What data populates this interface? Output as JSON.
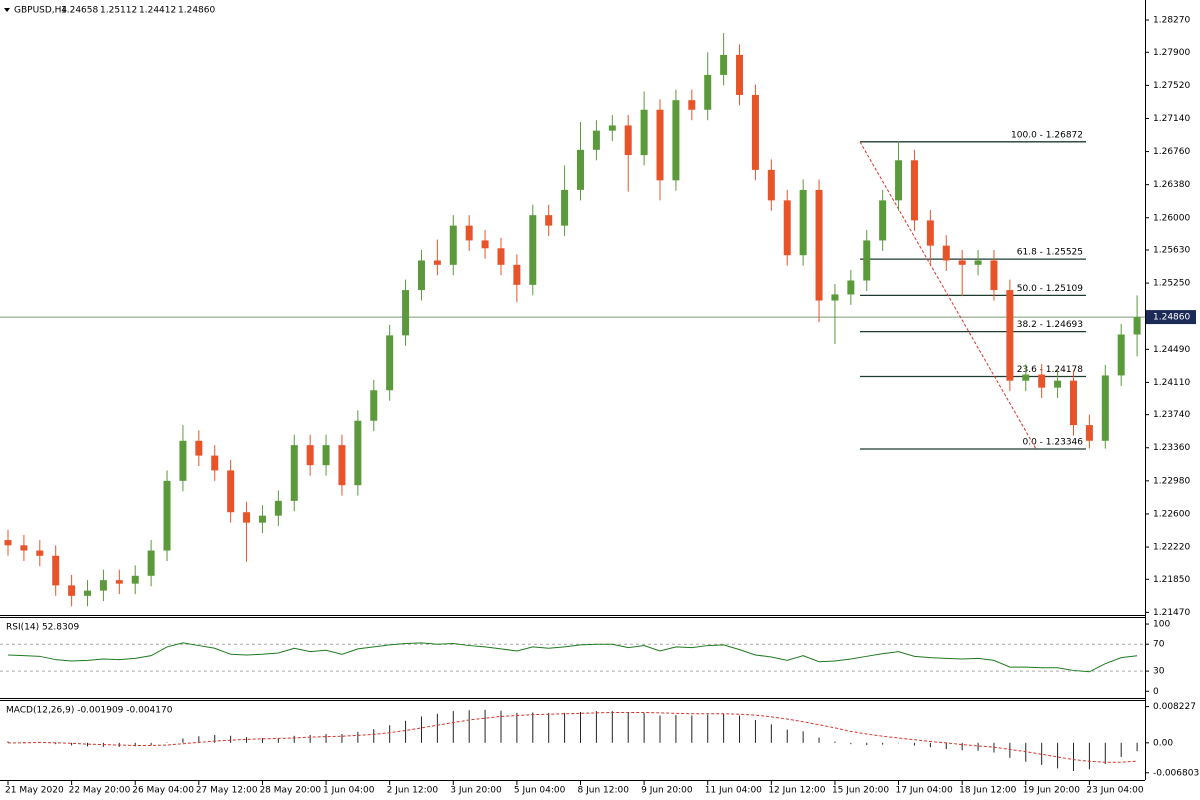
{
  "chart_data": [
    {
      "type": "candlestick",
      "title": "GBPUSD,H4",
      "header_values": [
        "1.24658",
        "1.25112",
        "1.24412",
        "1.24860"
      ],
      "categories": [
        "21 May 2020",
        null,
        null,
        null,
        "22 May 20:00",
        null,
        null,
        null,
        "26 May 04:00",
        null,
        null,
        null,
        "27 May 12:00",
        null,
        null,
        null,
        "28 May 20:00",
        null,
        null,
        null,
        "1 Jun 04:00",
        null,
        null,
        null,
        "2 Jun 12:00",
        null,
        null,
        null,
        "3 Jun 20:00",
        null,
        null,
        null,
        "5 Jun 04:00",
        null,
        null,
        null,
        "8 Jun 12:00",
        null,
        null,
        null,
        "9 Jun 20:00",
        null,
        null,
        null,
        "11 Jun 04:00",
        null,
        null,
        null,
        "12 Jun 12:00",
        null,
        null,
        null,
        "15 Jun 20:00",
        null,
        null,
        null,
        "17 Jun 04:00",
        null,
        null,
        null,
        "18 Jun 12:00",
        null,
        null,
        null,
        "19 Jun 20:00",
        null,
        null,
        null,
        "23 Jun 04:00",
        null,
        null,
        null
      ],
      "open": [
        1.223,
        1.2224,
        1.2218,
        1.2212,
        1.2178,
        1.2166,
        1.2172,
        1.2184,
        1.218,
        1.2189,
        1.2218,
        1.2298,
        1.2344,
        1.2327,
        1.231,
        1.2262,
        1.225,
        1.2258,
        1.2275,
        1.2339,
        1.2316,
        1.2339,
        1.2293,
        1.2367,
        1.2402,
        1.2465,
        1.2517,
        1.2551,
        1.2546,
        1.2591,
        1.2574,
        1.2565,
        1.2546,
        1.2523,
        1.2603,
        1.2591,
        1.2632,
        1.2678,
        1.27,
        1.2706,
        1.2672,
        1.2724,
        1.2643,
        1.2735,
        1.2724,
        1.2764,
        1.2787,
        1.2741,
        1.2655,
        1.262,
        1.2557,
        1.2632,
        1.2505,
        1.2512,
        1.2528,
        1.2574,
        1.262,
        1.2666,
        1.2597,
        1.2568,
        1.2551,
        1.2546,
        1.2551,
        1.2517,
        1.2413,
        1.242,
        1.2405,
        1.2413,
        1.2362,
        1.2344,
        1.2419,
        1.2466
      ],
      "high": [
        1.2242,
        1.2236,
        1.223,
        1.2224,
        1.219,
        1.2184,
        1.2196,
        1.2196,
        1.2201,
        1.223,
        1.231,
        1.2362,
        1.2356,
        1.2339,
        1.2322,
        1.2274,
        1.227,
        1.2287,
        1.2351,
        1.2351,
        1.2351,
        1.2351,
        1.2379,
        1.2414,
        1.2477,
        1.2529,
        1.2563,
        1.2575,
        1.2603,
        1.2603,
        1.2586,
        1.2577,
        1.2558,
        1.2615,
        1.2615,
        1.266,
        1.271,
        1.2712,
        1.2718,
        1.2718,
        1.2745,
        1.2736,
        1.2747,
        1.2747,
        1.279,
        1.2812,
        1.2799,
        1.2753,
        1.2667,
        1.2632,
        1.2644,
        1.2644,
        1.2524,
        1.254,
        1.2586,
        1.2632,
        1.2688,
        1.2678,
        1.2609,
        1.258,
        1.2563,
        1.2563,
        1.2563,
        1.2529,
        1.2432,
        1.2432,
        1.2425,
        1.2425,
        1.2374,
        1.2431,
        1.2478,
        1.2511
      ],
      "low": [
        1.2212,
        1.2206,
        1.22,
        1.2166,
        1.2154,
        1.2154,
        1.216,
        1.2168,
        1.2168,
        1.2177,
        1.2206,
        1.2286,
        1.2315,
        1.2298,
        1.225,
        1.2205,
        1.2238,
        1.2246,
        1.2263,
        1.2304,
        1.2304,
        1.2281,
        1.2281,
        1.2355,
        1.239,
        1.2453,
        1.2505,
        1.2534,
        1.2534,
        1.2562,
        1.2553,
        1.2534,
        1.2503,
        1.2511,
        1.2579,
        1.2579,
        1.262,
        1.2666,
        1.2688,
        1.263,
        1.266,
        1.262,
        1.2631,
        1.2712,
        1.2712,
        1.2752,
        1.2729,
        1.2643,
        1.2608,
        1.2545,
        1.2545,
        1.248,
        1.2455,
        1.25,
        1.2516,
        1.2562,
        1.2608,
        1.2585,
        1.2545,
        1.2539,
        1.251,
        1.2534,
        1.2505,
        1.2401,
        1.2401,
        1.2393,
        1.2393,
        1.235,
        1.2335,
        1.2335,
        1.2407,
        1.2441
      ],
      "close": [
        1.2224,
        1.2218,
        1.2212,
        1.2178,
        1.2166,
        1.2172,
        1.2184,
        1.218,
        1.2189,
        1.2218,
        1.2298,
        1.2344,
        1.2327,
        1.231,
        1.2262,
        1.225,
        1.2258,
        1.2275,
        1.2339,
        1.2316,
        1.2339,
        1.2293,
        1.2367,
        1.2402,
        1.2465,
        1.2517,
        1.2551,
        1.2546,
        1.2591,
        1.2574,
        1.2565,
        1.2546,
        1.2523,
        1.2603,
        1.2591,
        1.2632,
        1.2678,
        1.27,
        1.2706,
        1.2672,
        1.2724,
        1.2643,
        1.2735,
        1.2724,
        1.2764,
        1.2787,
        1.2741,
        1.2655,
        1.262,
        1.2557,
        1.2632,
        1.2505,
        1.2512,
        1.2528,
        1.2574,
        1.262,
        1.2666,
        1.2597,
        1.2568,
        1.2551,
        1.2546,
        1.2551,
        1.2517,
        1.2413,
        1.242,
        1.2405,
        1.2413,
        1.2362,
        1.2344,
        1.2419,
        1.2466,
        1.2486
      ],
      "up_color": "#5b9a3a",
      "down_color": "#e8542a",
      "ylim": [
        1.2144,
        1.285
      ],
      "yticks": [
        {
          "value": 1.2827,
          "label": "1.28270"
        },
        {
          "value": 1.279,
          "label": "1.27900"
        },
        {
          "value": 1.2752,
          "label": "1.27520"
        },
        {
          "value": 1.2714,
          "label": "1.27140"
        },
        {
          "value": 1.2676,
          "label": "1.26760"
        },
        {
          "value": 1.2638,
          "label": "1.26380"
        },
        {
          "value": 1.26,
          "label": "1.26000"
        },
        {
          "value": 1.2563,
          "label": "1.25630"
        },
        {
          "value": 1.2525,
          "label": "1.25250"
        },
        {
          "value": 1.2449,
          "label": "1.24490"
        },
        {
          "value": 1.2411,
          "label": "1.24110"
        },
        {
          "value": 1.2374,
          "label": "1.23740"
        },
        {
          "value": 1.2336,
          "label": "1.23360"
        },
        {
          "value": 1.2298,
          "label": "1.22980"
        },
        {
          "value": 1.226,
          "label": "1.22600"
        },
        {
          "value": 1.2222,
          "label": "1.22220"
        },
        {
          "value": 1.2185,
          "label": "1.21850"
        },
        {
          "value": 1.2147,
          "label": "1.21470"
        }
      ],
      "current_price": {
        "value": 1.2486,
        "label": "1.24860"
      },
      "fib_levels": [
        {
          "value": 1.26872,
          "label": "100.0 - 1.26872"
        },
        {
          "value": 1.25525,
          "label": "61.8 - 1.25525"
        },
        {
          "value": 1.25109,
          "label": "50.0 - 1.25109"
        },
        {
          "value": 1.24693,
          "label": "38.2 - 1.24693"
        },
        {
          "value": 1.24178,
          "label": "23.6 - 1.24178"
        },
        {
          "value": 1.23346,
          "label": "0.0 - 1.23346"
        }
      ]
    },
    {
      "type": "line",
      "title": "RSI(14) 52.8309",
      "color": "#1f7a1f",
      "values": [
        54,
        53,
        52,
        47,
        45,
        46,
        48,
        47,
        49,
        53,
        66,
        72,
        68,
        64,
        55,
        54,
        55,
        57,
        64,
        59,
        61,
        55,
        63,
        66,
        69,
        71,
        72,
        70,
        71,
        68,
        66,
        63,
        60,
        66,
        64,
        66,
        69,
        70,
        70,
        65,
        68,
        60,
        66,
        65,
        68,
        69,
        62,
        54,
        51,
        46,
        53,
        44,
        45,
        48,
        52,
        56,
        59,
        52,
        50,
        49,
        48,
        49,
        46,
        36,
        36,
        35,
        35,
        31,
        29,
        41,
        50,
        52.8309
      ],
      "ylim": [
        -10,
        109
      ],
      "yticks": [
        0,
        30,
        70,
        100
      ],
      "levels": [
        70,
        30
      ]
    },
    {
      "type": "macd",
      "title": "MACD(12,26,9) -0.001909 -0.004170",
      "color": "#222222",
      "signal_color": "#d9342b",
      "values": [
        0.0003,
        0.0002,
        0.0001,
        -0.0003,
        -0.0006,
        -0.0008,
        -0.0009,
        -0.0009,
        -0.0008,
        -0.0006,
        0.0001,
        0.001,
        0.0015,
        0.0018,
        0.0016,
        0.0013,
        0.0011,
        0.0011,
        0.0016,
        0.0018,
        0.002,
        0.002,
        0.0025,
        0.0031,
        0.004,
        0.005,
        0.006,
        0.0066,
        0.0072,
        0.0074,
        0.0075,
        0.0073,
        0.0068,
        0.0069,
        0.0068,
        0.0068,
        0.007,
        0.0072,
        0.0072,
        0.0068,
        0.0068,
        0.0062,
        0.0063,
        0.0062,
        0.0064,
        0.0066,
        0.0062,
        0.0052,
        0.0042,
        0.003,
        0.0026,
        0.0012,
        0.0003,
        -0.0003,
        -0.0005,
        -0.0004,
        -0.0001,
        -0.0006,
        -0.001,
        -0.0014,
        -0.0017,
        -0.0018,
        -0.0022,
        -0.0034,
        -0.0043,
        -0.005,
        -0.0058,
        -0.0064,
        -0.006,
        -0.0048,
        -0.0032,
        -0.001909
      ],
      "signal": [
        0.0,
        0.0,
        0.0001,
        0.0,
        -0.0001,
        -0.0003,
        -0.0004,
        -0.0005,
        -0.0006,
        -0.0006,
        -0.0005,
        -0.0002,
        0.0001,
        0.0004,
        0.0006,
        0.0008,
        0.0009,
        0.001,
        0.0011,
        0.0013,
        0.0014,
        0.0015,
        0.0017,
        0.0019,
        0.0023,
        0.0028,
        0.0034,
        0.004,
        0.0046,
        0.0052,
        0.0056,
        0.006,
        0.0062,
        0.0064,
        0.0065,
        0.0066,
        0.0067,
        0.0068,
        0.0069,
        0.0069,
        0.0069,
        0.0068,
        0.0067,
        0.0066,
        0.0066,
        0.0066,
        0.0065,
        0.0063,
        0.0059,
        0.0054,
        0.0048,
        0.0041,
        0.0034,
        0.0026,
        0.002,
        0.0015,
        0.0011,
        0.0007,
        0.0003,
        0.0,
        -0.0004,
        -0.0007,
        -0.001,
        -0.0015,
        -0.002,
        -0.0026,
        -0.0032,
        -0.0038,
        -0.0042,
        -0.0044,
        -0.0044,
        -0.00417
      ],
      "ylim": [
        -0.00844,
        0.0095
      ],
      "yticks": [
        {
          "value": 0.008227,
          "label": "0.008227"
        },
        {
          "value": 0,
          "label": "0.00"
        },
        {
          "value": -0.006803,
          "label": "-0.006803"
        }
      ]
    }
  ]
}
